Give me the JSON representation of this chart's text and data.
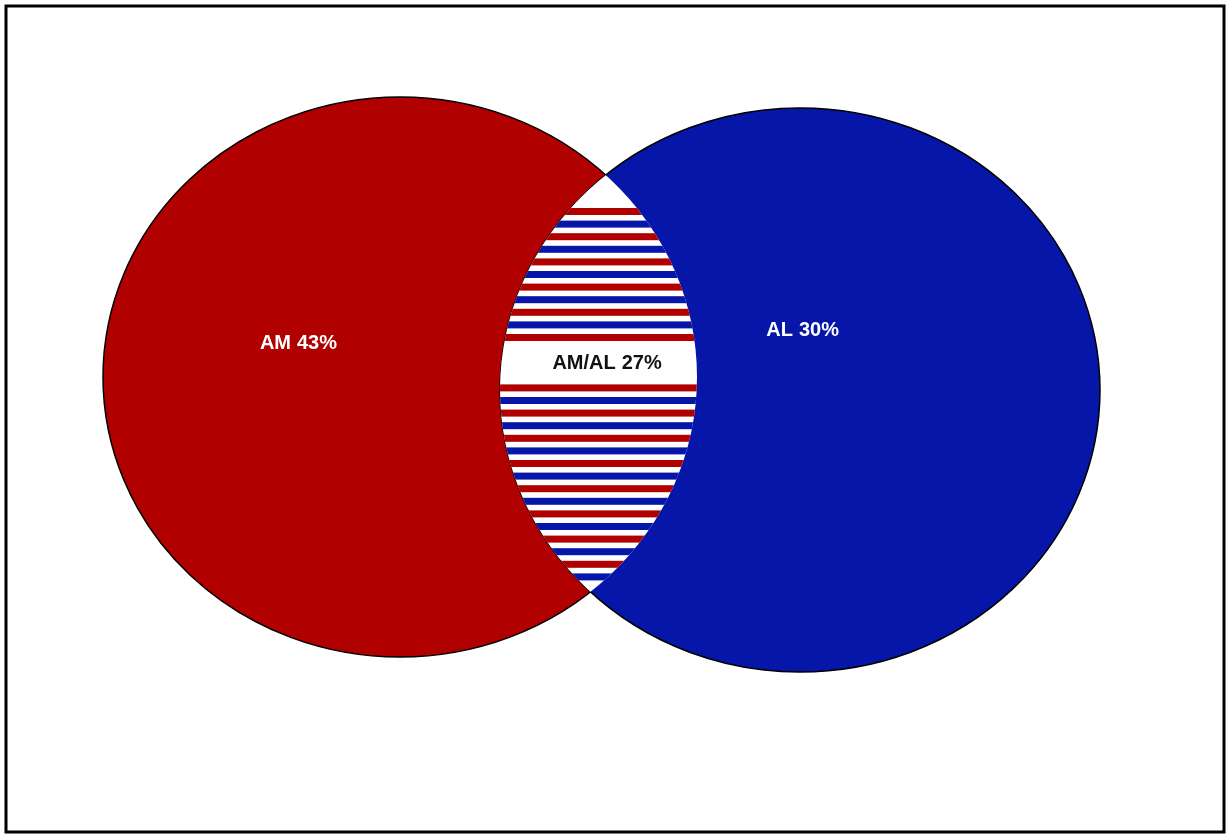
{
  "chart_data": {
    "type": "other",
    "categories": [
      "AM",
      "AL",
      "AM/AL"
    ],
    "values": [
      43,
      30,
      27
    ],
    "value_labels": [
      "43%",
      "30%",
      "27%"
    ],
    "colors": [
      "#b00000",
      "#0616a8",
      "#ffffff"
    ]
  }
}
